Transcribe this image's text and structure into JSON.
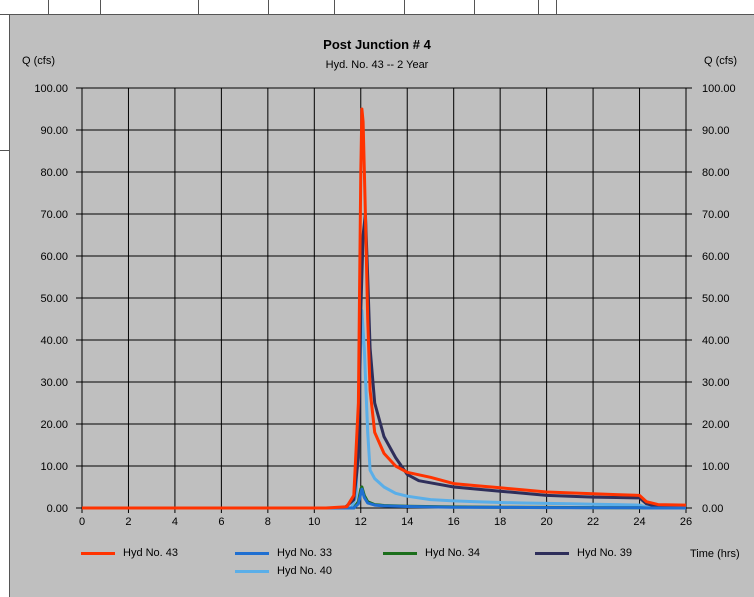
{
  "chart_data": {
    "type": "line",
    "title": "Post Junction # 4",
    "subtitle": "Hyd. No. 43 -- 2 Year",
    "ylabel_left": "Q (cfs)",
    "ylabel_right": "Q (cfs)",
    "xlabel": "Time (hrs)",
    "xlim": [
      0,
      26
    ],
    "ylim": [
      0,
      100
    ],
    "x_ticks": [
      0,
      2,
      4,
      6,
      8,
      10,
      12,
      14,
      16,
      18,
      20,
      22,
      24,
      26
    ],
    "y_ticks": [
      "0.00",
      "10.00",
      "20.00",
      "30.00",
      "40.00",
      "50.00",
      "60.00",
      "70.00",
      "80.00",
      "90.00",
      "100.00"
    ],
    "grid": true,
    "legend_position": "bottom",
    "series": [
      {
        "name": "Hyd No. 43",
        "color": "#ff3300",
        "points": [
          [
            0,
            0
          ],
          [
            10.5,
            0
          ],
          [
            11.4,
            0.3
          ],
          [
            11.7,
            3
          ],
          [
            11.9,
            25
          ],
          [
            12.0,
            80
          ],
          [
            12.05,
            95
          ],
          [
            12.1,
            92
          ],
          [
            12.2,
            70
          ],
          [
            12.3,
            45
          ],
          [
            12.4,
            28
          ],
          [
            12.6,
            18
          ],
          [
            13.0,
            13
          ],
          [
            13.5,
            10
          ],
          [
            14,
            8.5
          ],
          [
            15,
            7.3
          ],
          [
            16,
            5.8
          ],
          [
            17,
            5.3
          ],
          [
            18,
            4.8
          ],
          [
            19,
            4.3
          ],
          [
            20,
            3.8
          ],
          [
            21,
            3.6
          ],
          [
            22,
            3.4
          ],
          [
            23,
            3.2
          ],
          [
            24,
            3.0
          ],
          [
            24.3,
            1.5
          ],
          [
            24.8,
            0.8
          ],
          [
            26,
            0.7
          ]
        ]
      },
      {
        "name": "Hyd No. 33",
        "color": "#1f6fd1",
        "points": [
          [
            0,
            0
          ],
          [
            11.7,
            0
          ],
          [
            11.9,
            1
          ],
          [
            12.0,
            3.5
          ],
          [
            12.05,
            4.5
          ],
          [
            12.15,
            2.5
          ],
          [
            12.3,
            1.2
          ],
          [
            12.6,
            0.7
          ],
          [
            13,
            0.5
          ],
          [
            14,
            0.35
          ],
          [
            16,
            0.2
          ],
          [
            18,
            0.15
          ],
          [
            20,
            0.1
          ],
          [
            22,
            0.08
          ],
          [
            24,
            0.05
          ],
          [
            24.3,
            0
          ],
          [
            26,
            0
          ]
        ]
      },
      {
        "name": "Hyd No. 34",
        "color": "#1b6e1b",
        "points": [
          [
            0,
            0
          ],
          [
            11.7,
            0
          ],
          [
            11.9,
            1.5
          ],
          [
            12.0,
            4.5
          ],
          [
            12.05,
            5
          ],
          [
            12.15,
            3
          ],
          [
            12.3,
            1.5
          ],
          [
            12.6,
            0.8
          ],
          [
            13,
            0.6
          ],
          [
            14,
            0.4
          ],
          [
            16,
            0.25
          ],
          [
            18,
            0.2
          ],
          [
            20,
            0.15
          ],
          [
            22,
            0.1
          ],
          [
            24,
            0.08
          ],
          [
            24.3,
            0
          ],
          [
            26,
            0
          ]
        ]
      },
      {
        "name": "Hyd No. 39",
        "color": "#2e2e5a",
        "points": [
          [
            0,
            0
          ],
          [
            11.3,
            0
          ],
          [
            11.7,
            2
          ],
          [
            11.9,
            12
          ],
          [
            12.0,
            47
          ],
          [
            12.1,
            65
          ],
          [
            12.2,
            70
          ],
          [
            12.3,
            55
          ],
          [
            12.4,
            38
          ],
          [
            12.6,
            25
          ],
          [
            13,
            17
          ],
          [
            13.5,
            12
          ],
          [
            14,
            8
          ],
          [
            14.5,
            6.5
          ],
          [
            15,
            6
          ],
          [
            16,
            5
          ],
          [
            17,
            4.5
          ],
          [
            18,
            4
          ],
          [
            19,
            3.5
          ],
          [
            20,
            3
          ],
          [
            21,
            2.8
          ],
          [
            22,
            2.6
          ],
          [
            23,
            2.5
          ],
          [
            24,
            2.4
          ],
          [
            24.3,
            1
          ],
          [
            24.8,
            0.3
          ],
          [
            26,
            0.2
          ]
        ]
      },
      {
        "name": "Hyd No. 40",
        "color": "#5aaee8",
        "points": [
          [
            0,
            0
          ],
          [
            11.6,
            0
          ],
          [
            11.8,
            3
          ],
          [
            11.95,
            30
          ],
          [
            12.05,
            47
          ],
          [
            12.15,
            38
          ],
          [
            12.3,
            18
          ],
          [
            12.4,
            9
          ],
          [
            12.6,
            7
          ],
          [
            13,
            5
          ],
          [
            13.5,
            3.5
          ],
          [
            14,
            2.8
          ],
          [
            15,
            2
          ],
          [
            16,
            1.7
          ],
          [
            17,
            1.5
          ],
          [
            18,
            1.3
          ],
          [
            19,
            1.2
          ],
          [
            20,
            1.1
          ],
          [
            21,
            1
          ],
          [
            22,
            0.9
          ],
          [
            23,
            0.8
          ],
          [
            24,
            0.7
          ],
          [
            24.3,
            0.2
          ],
          [
            26,
            0.1
          ]
        ]
      }
    ]
  }
}
